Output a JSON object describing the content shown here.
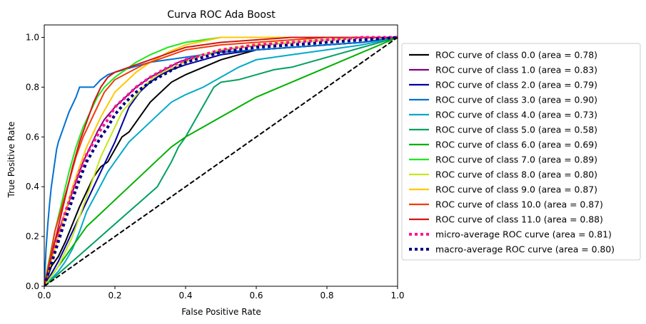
{
  "chart_data": {
    "type": "line",
    "title": "Curva ROC Ada Boost",
    "xlabel": "False Positive Rate",
    "ylabel": "True Positive Rate",
    "xlim": [
      0.0,
      1.0
    ],
    "ylim": [
      0.0,
      1.05
    ],
    "xticks": [
      0.0,
      0.2,
      0.4,
      0.6,
      0.8,
      1.0
    ],
    "yticks": [
      0.0,
      0.2,
      0.4,
      0.6,
      0.8,
      1.0
    ],
    "xtick_labels": [
      "0.0",
      "0.2",
      "0.4",
      "0.6",
      "0.8",
      "1.0"
    ],
    "ytick_labels": [
      "0.0",
      "0.2",
      "0.4",
      "0.6",
      "0.8",
      "1.0"
    ],
    "grid": false,
    "legend_position": "outside-right",
    "series": [
      {
        "name": "ROC curve of class 0.0 (area = 0.78)",
        "color": "#000000",
        "style": "solid",
        "x": [
          0,
          0.01,
          0.02,
          0.04,
          0.06,
          0.08,
          0.1,
          0.12,
          0.14,
          0.16,
          0.18,
          0.2,
          0.22,
          0.24,
          0.26,
          0.28,
          0.3,
          0.33,
          0.36,
          0.4,
          0.45,
          0.5,
          0.55,
          0.6,
          0.7,
          0.8,
          0.9,
          1.0
        ],
        "y": [
          0,
          0.04,
          0.08,
          0.12,
          0.18,
          0.25,
          0.32,
          0.38,
          0.44,
          0.48,
          0.5,
          0.55,
          0.6,
          0.62,
          0.66,
          0.7,
          0.74,
          0.78,
          0.82,
          0.85,
          0.88,
          0.91,
          0.93,
          0.95,
          0.96,
          0.97,
          0.98,
          1.0
        ]
      },
      {
        "name": "ROC curve of class 1.0 (area = 0.83)",
        "color": "#800080",
        "style": "solid",
        "x": [
          0,
          0.01,
          0.02,
          0.03,
          0.05,
          0.07,
          0.09,
          0.11,
          0.13,
          0.15,
          0.17,
          0.2,
          0.23,
          0.26,
          0.3,
          0.34,
          0.38,
          0.42,
          0.48,
          0.55,
          0.62,
          0.7,
          0.8,
          0.9,
          1.0
        ],
        "y": [
          0,
          0.06,
          0.12,
          0.18,
          0.26,
          0.34,
          0.42,
          0.5,
          0.56,
          0.62,
          0.67,
          0.72,
          0.76,
          0.8,
          0.84,
          0.87,
          0.9,
          0.92,
          0.94,
          0.96,
          0.97,
          0.98,
          0.99,
          1.0,
          1.0
        ]
      },
      {
        "name": "ROC curve of class 2.0 (area = 0.79)",
        "color": "#0000a0",
        "style": "solid",
        "x": [
          0,
          0.02,
          0.04,
          0.06,
          0.08,
          0.1,
          0.12,
          0.14,
          0.16,
          0.18,
          0.2,
          0.22,
          0.24,
          0.27,
          0.3,
          0.33,
          0.36,
          0.4,
          0.45,
          0.5,
          0.6,
          0.7,
          0.8,
          0.9,
          1.0
        ],
        "y": [
          0,
          0.05,
          0.1,
          0.16,
          0.22,
          0.28,
          0.34,
          0.4,
          0.46,
          0.52,
          0.58,
          0.65,
          0.72,
          0.78,
          0.82,
          0.85,
          0.87,
          0.89,
          0.91,
          0.93,
          0.95,
          0.96,
          0.97,
          0.98,
          1.0
        ]
      },
      {
        "name": "ROC curve of class 3.0 (area = 0.90)",
        "color": "#0070d0",
        "style": "solid",
        "x": [
          0,
          0.005,
          0.01,
          0.015,
          0.02,
          0.025,
          0.03,
          0.035,
          0.04,
          0.05,
          0.06,
          0.07,
          0.08,
          0.09,
          0.1,
          0.12,
          0.14,
          0.16,
          0.18,
          0.2,
          0.25,
          0.3,
          0.4,
          0.5,
          0.6,
          0.7,
          0.8,
          0.9,
          1.0
        ],
        "y": [
          0,
          0.15,
          0.25,
          0.33,
          0.4,
          0.45,
          0.5,
          0.55,
          0.58,
          0.62,
          0.66,
          0.7,
          0.73,
          0.76,
          0.8,
          0.8,
          0.8,
          0.83,
          0.85,
          0.86,
          0.88,
          0.9,
          0.92,
          0.94,
          0.95,
          0.96,
          0.97,
          0.98,
          1.0
        ]
      },
      {
        "name": "ROC curve of class 4.0 (area = 0.73)",
        "color": "#00aac8",
        "style": "solid",
        "x": [
          0,
          0.02,
          0.04,
          0.06,
          0.08,
          0.1,
          0.12,
          0.15,
          0.18,
          0.21,
          0.24,
          0.27,
          0.3,
          0.33,
          0.36,
          0.4,
          0.45,
          0.5,
          0.55,
          0.6,
          0.7,
          0.8,
          0.9,
          1.0
        ],
        "y": [
          0,
          0.03,
          0.06,
          0.1,
          0.15,
          0.22,
          0.3,
          0.38,
          0.46,
          0.52,
          0.58,
          0.62,
          0.66,
          0.7,
          0.74,
          0.77,
          0.8,
          0.84,
          0.88,
          0.91,
          0.93,
          0.95,
          0.97,
          1.0
        ]
      },
      {
        "name": "ROC curve of class 5.0 (area = 0.58)",
        "color": "#00a060",
        "style": "solid",
        "x": [
          0,
          0.04,
          0.08,
          0.12,
          0.16,
          0.2,
          0.24,
          0.28,
          0.32,
          0.36,
          0.38,
          0.4,
          0.42,
          0.44,
          0.46,
          0.48,
          0.5,
          0.55,
          0.6,
          0.65,
          0.7,
          0.75,
          0.8,
          0.85,
          0.9,
          0.95,
          1.0
        ],
        "y": [
          0,
          0.05,
          0.1,
          0.15,
          0.2,
          0.25,
          0.3,
          0.35,
          0.4,
          0.5,
          0.56,
          0.6,
          0.65,
          0.7,
          0.75,
          0.8,
          0.82,
          0.83,
          0.85,
          0.87,
          0.88,
          0.9,
          0.92,
          0.94,
          0.96,
          0.98,
          1.0
        ]
      },
      {
        "name": "ROC curve of class 6.0 (area = 0.69)",
        "color": "#00b000",
        "style": "solid",
        "x": [
          0,
          0.02,
          0.04,
          0.06,
          0.08,
          0.1,
          0.12,
          0.15,
          0.18,
          0.21,
          0.24,
          0.27,
          0.3,
          0.33,
          0.36,
          0.4,
          0.45,
          0.5,
          0.55,
          0.6,
          0.7,
          0.8,
          0.9,
          1.0
        ],
        "y": [
          0,
          0.04,
          0.08,
          0.12,
          0.16,
          0.2,
          0.24,
          0.28,
          0.32,
          0.36,
          0.4,
          0.44,
          0.48,
          0.52,
          0.56,
          0.6,
          0.64,
          0.68,
          0.72,
          0.76,
          0.82,
          0.88,
          0.94,
          1.0
        ]
      },
      {
        "name": "ROC curve of class 7.0 (area = 0.89)",
        "color": "#1ee81e",
        "style": "solid",
        "x": [
          0,
          0.01,
          0.02,
          0.03,
          0.05,
          0.07,
          0.09,
          0.11,
          0.13,
          0.15,
          0.17,
          0.2,
          0.23,
          0.26,
          0.3,
          0.35,
          0.4,
          0.5,
          0.6,
          0.7,
          0.8,
          0.9,
          1.0
        ],
        "y": [
          0,
          0.08,
          0.15,
          0.22,
          0.34,
          0.46,
          0.56,
          0.64,
          0.7,
          0.76,
          0.8,
          0.84,
          0.87,
          0.9,
          0.93,
          0.96,
          0.98,
          1.0,
          1.0,
          1.0,
          1.0,
          1.0,
          1.0
        ]
      },
      {
        "name": "ROC curve of class 8.0 (area = 0.80)",
        "color": "#c8e61e",
        "style": "solid",
        "x": [
          0,
          0.02,
          0.04,
          0.06,
          0.08,
          0.1,
          0.12,
          0.14,
          0.16,
          0.18,
          0.2,
          0.22,
          0.25,
          0.28,
          0.31,
          0.35,
          0.4,
          0.45,
          0.5,
          0.6,
          0.7,
          0.8,
          0.9,
          1.0
        ],
        "y": [
          0,
          0.04,
          0.08,
          0.14,
          0.2,
          0.28,
          0.36,
          0.44,
          0.52,
          0.58,
          0.64,
          0.7,
          0.75,
          0.8,
          0.84,
          0.87,
          0.9,
          0.93,
          0.95,
          0.97,
          0.98,
          0.99,
          1.0,
          1.0
        ]
      },
      {
        "name": "ROC curve of class 9.0 (area = 0.87)",
        "color": "#ffc800",
        "style": "solid",
        "x": [
          0,
          0.01,
          0.02,
          0.04,
          0.06,
          0.08,
          0.1,
          0.12,
          0.14,
          0.16,
          0.18,
          0.2,
          0.23,
          0.26,
          0.3,
          0.35,
          0.4,
          0.5,
          0.6,
          0.7,
          0.8,
          0.9,
          1.0
        ],
        "y": [
          0,
          0.05,
          0.1,
          0.2,
          0.3,
          0.4,
          0.48,
          0.56,
          0.62,
          0.68,
          0.73,
          0.78,
          0.82,
          0.86,
          0.9,
          0.94,
          0.97,
          1.0,
          1.0,
          1.0,
          1.0,
          1.0,
          1.0
        ]
      },
      {
        "name": "ROC curve of class 10.0 (area = 0.87)",
        "color": "#f03c0a",
        "style": "solid",
        "x": [
          0,
          0.01,
          0.02,
          0.03,
          0.05,
          0.07,
          0.09,
          0.11,
          0.13,
          0.15,
          0.17,
          0.2,
          0.24,
          0.28,
          0.32,
          0.36,
          0.4,
          0.5,
          0.6,
          0.7,
          0.8,
          0.9,
          1.0
        ],
        "y": [
          0,
          0.07,
          0.14,
          0.22,
          0.32,
          0.42,
          0.52,
          0.6,
          0.66,
          0.72,
          0.78,
          0.83,
          0.86,
          0.89,
          0.91,
          0.93,
          0.95,
          0.97,
          0.98,
          0.99,
          1.0,
          1.0,
          1.0
        ]
      },
      {
        "name": "ROC curve of class 11.0 (area = 0.88)",
        "color": "#d21414",
        "style": "solid",
        "x": [
          0,
          0.01,
          0.02,
          0.04,
          0.06,
          0.08,
          0.1,
          0.12,
          0.14,
          0.16,
          0.18,
          0.2,
          0.24,
          0.28,
          0.32,
          0.36,
          0.4,
          0.5,
          0.6,
          0.7,
          0.8,
          0.9,
          1.0
        ],
        "y": [
          0,
          0.06,
          0.12,
          0.24,
          0.36,
          0.48,
          0.58,
          0.66,
          0.74,
          0.8,
          0.84,
          0.86,
          0.88,
          0.9,
          0.92,
          0.94,
          0.96,
          0.98,
          0.99,
          1.0,
          1.0,
          1.0,
          1.0
        ]
      },
      {
        "name": "micro-average ROC curve (area = 0.81)",
        "color": "#ff1493",
        "style": "dotted",
        "x": [
          0,
          0.02,
          0.04,
          0.06,
          0.08,
          0.1,
          0.12,
          0.14,
          0.16,
          0.18,
          0.2,
          0.23,
          0.26,
          0.3,
          0.35,
          0.4,
          0.5,
          0.6,
          0.7,
          0.8,
          0.9,
          1.0
        ],
        "y": [
          0,
          0.1,
          0.2,
          0.3,
          0.38,
          0.46,
          0.53,
          0.58,
          0.63,
          0.67,
          0.72,
          0.76,
          0.8,
          0.84,
          0.88,
          0.91,
          0.95,
          0.97,
          0.98,
          0.99,
          1.0,
          1.0
        ]
      },
      {
        "name": "macro-average ROC curve (area = 0.80)",
        "color": "#000080",
        "style": "dotted",
        "x": [
          0,
          0.02,
          0.04,
          0.06,
          0.08,
          0.1,
          0.12,
          0.14,
          0.16,
          0.18,
          0.2,
          0.23,
          0.26,
          0.3,
          0.35,
          0.4,
          0.5,
          0.6,
          0.7,
          0.8,
          0.9,
          1.0
        ],
        "y": [
          0,
          0.09,
          0.18,
          0.27,
          0.35,
          0.43,
          0.5,
          0.55,
          0.6,
          0.64,
          0.69,
          0.74,
          0.78,
          0.82,
          0.86,
          0.9,
          0.94,
          0.96,
          0.97,
          0.98,
          0.99,
          1.0
        ]
      }
    ],
    "reference_line": {
      "x": [
        0,
        1
      ],
      "y": [
        0,
        1
      ],
      "color": "#000000",
      "style": "dashed"
    }
  }
}
